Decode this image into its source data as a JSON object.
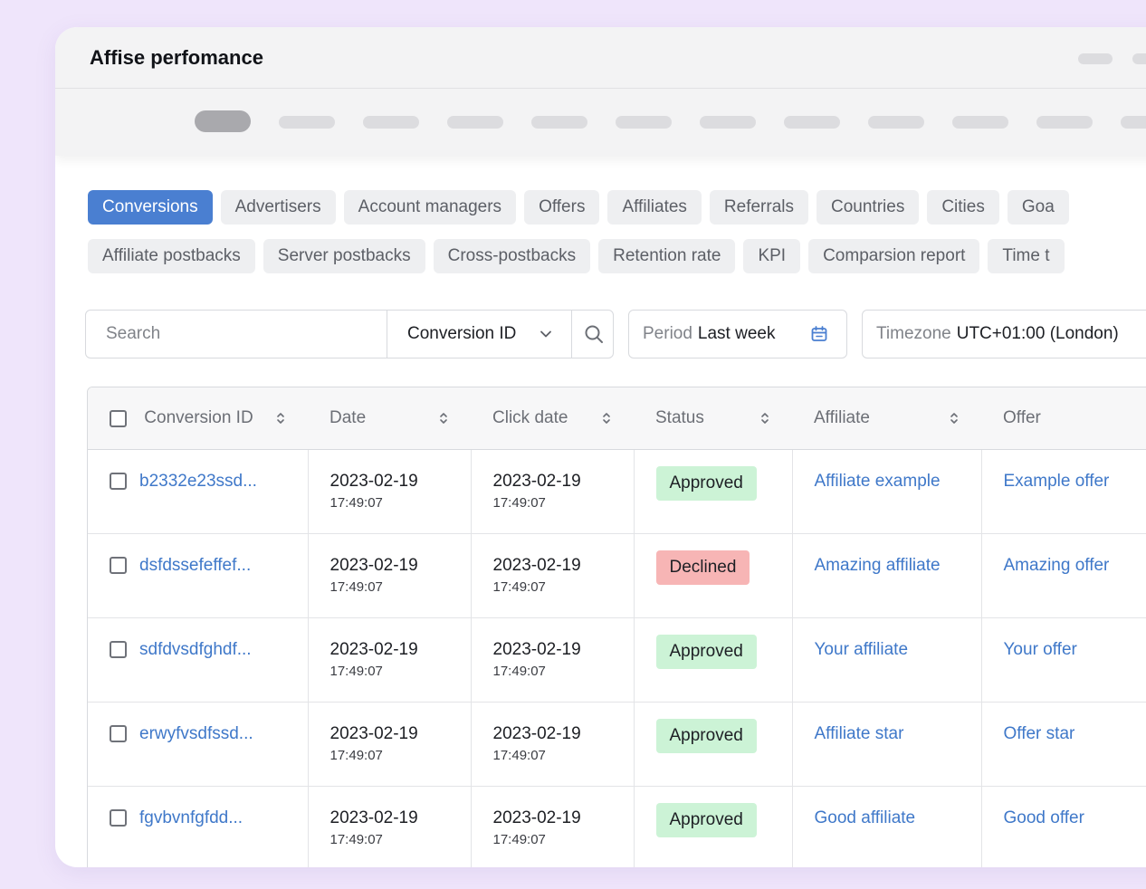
{
  "window": {
    "title": "Affise perfomance"
  },
  "tabs_row1": [
    "Conversions",
    "Advertisers",
    "Account managers",
    "Offers",
    "Affiliates",
    "Referrals",
    "Countries",
    "Cities",
    "Goa"
  ],
  "tabs_row2": [
    "Affiliate postbacks",
    "Server postbacks",
    "Cross-postbacks",
    "Retention rate",
    "KPI",
    "Comparsion report",
    "Time t"
  ],
  "active_tab": "Conversions",
  "filters": {
    "search_placeholder": "Search",
    "search_field": "Conversion ID",
    "period_label": "Period",
    "period_value": "Last week",
    "timezone_label": "Timezone",
    "timezone_value": "UTC+01:00 (London)"
  },
  "table": {
    "headers": [
      "Conversion ID",
      "Date",
      "Click date",
      "Status",
      "Affiliate",
      "Offer"
    ],
    "rows": [
      {
        "id": "b2332e23ssd...",
        "date": "2023-02-19",
        "time": "17:49:07",
        "click_date": "2023-02-19",
        "click_time": "17:49:07",
        "status": "Approved",
        "affiliate": "Affiliate example",
        "offer": "Example offer"
      },
      {
        "id": "dsfdssefeffef...",
        "date": "2023-02-19",
        "time": "17:49:07",
        "click_date": "2023-02-19",
        "click_time": "17:49:07",
        "status": "Declined",
        "affiliate": "Amazing affiliate",
        "offer": "Amazing offer"
      },
      {
        "id": "sdfdvsdfghdf...",
        "date": "2023-02-19",
        "time": "17:49:07",
        "click_date": "2023-02-19",
        "click_time": "17:49:07",
        "status": "Approved",
        "affiliate": "Your affiliate",
        "offer": "Your offer"
      },
      {
        "id": "erwyfvsdfssd...",
        "date": "2023-02-19",
        "time": "17:49:07",
        "click_date": "2023-02-19",
        "click_time": "17:49:07",
        "status": "Approved",
        "affiliate": "Affiliate star",
        "offer": "Offer star"
      },
      {
        "id": "fgvbvnfgfdd...",
        "date": "2023-02-19",
        "time": "17:49:07",
        "click_date": "2023-02-19",
        "click_time": "17:49:07",
        "status": "Approved",
        "affiliate": "Good affiliate",
        "offer": "Good offer"
      }
    ]
  },
  "colors": {
    "background": "#efe5fb",
    "accent": "#4a7fd1",
    "link": "#3f78c9",
    "approved": "#ccf3d6",
    "declined": "#f7b5b5"
  },
  "icons": [
    "search-icon",
    "chevron-down-icon",
    "calendar-icon",
    "sort-icon",
    "checkbox-icon"
  ]
}
